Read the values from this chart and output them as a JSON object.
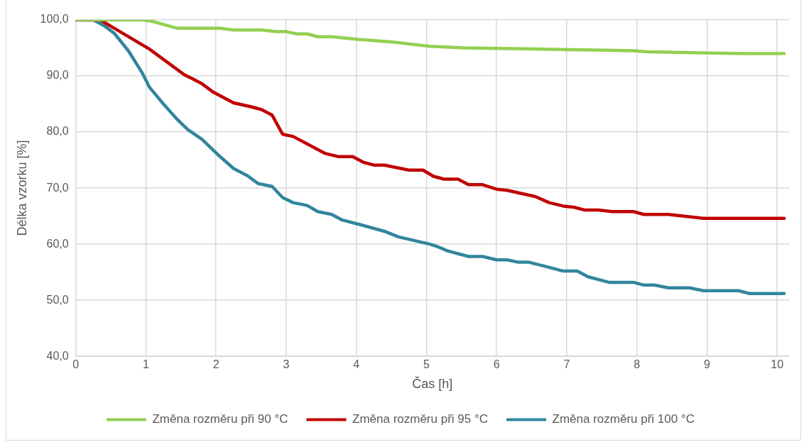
{
  "chart_data": {
    "type": "line",
    "xlabel": "Čas [h]",
    "ylabel": "Délka vzorku [%]",
    "xlim": [
      0,
      10.17
    ],
    "xticks": [
      0,
      1,
      2,
      3,
      4,
      5,
      6,
      7,
      8,
      9,
      10
    ],
    "ylim": [
      40,
      100
    ],
    "yticks": [
      {
        "value": 40,
        "label": "40,0"
      },
      {
        "value": 50,
        "label": "50,0"
      },
      {
        "value": 60,
        "label": "60,0"
      },
      {
        "value": 70,
        "label": "70,0"
      },
      {
        "value": 80,
        "label": "80,0"
      },
      {
        "value": 90,
        "label": "90,0"
      },
      {
        "value": 100,
        "label": "100,0"
      }
    ],
    "grid": true,
    "legend": "bottom",
    "marker": "none",
    "line_style": "solid",
    "series": [
      {
        "name": "Změna rozměru při 90 °C",
        "color": "#92d050",
        "x": [
          0,
          0.95,
          1.1,
          1.45,
          2.05,
          2.25,
          2.65,
          2.85,
          3.0,
          3.15,
          3.3,
          3.45,
          3.65,
          4.05,
          4.55,
          5.05,
          5.55,
          6.05,
          6.55,
          7.05,
          7.55,
          7.95,
          8.15,
          8.55,
          9.05,
          9.55,
          10.1
        ],
        "values": [
          100,
          100,
          99.7,
          98.5,
          98.5,
          98.2,
          98.2,
          97.9,
          97.9,
          97.5,
          97.5,
          97,
          97,
          96.5,
          96,
          95.3,
          95,
          94.9,
          94.8,
          94.7,
          94.6,
          94.5,
          94.3,
          94.2,
          94.1,
          94,
          94
        ]
      },
      {
        "name": "Změna rozměru při 95 °C",
        "color": "#c00000",
        "x": [
          0,
          0.35,
          0.55,
          1.05,
          1.55,
          1.65,
          1.8,
          1.95,
          2.25,
          2.5,
          2.65,
          2.8,
          2.95,
          3.1,
          3.55,
          3.75,
          3.95,
          4.1,
          4.25,
          4.4,
          4.75,
          4.95,
          5.1,
          5.25,
          5.45,
          5.6,
          5.8,
          6.0,
          6.15,
          6.55,
          6.75,
          6.95,
          7.1,
          7.25,
          7.45,
          7.65,
          7.95,
          8.1,
          8.45,
          8.95,
          10.1
        ],
        "values": [
          100,
          100,
          98.5,
          94.8,
          90.2,
          89.6,
          88.6,
          87.2,
          85.2,
          84.5,
          84,
          83,
          79.6,
          79.2,
          76.2,
          75.6,
          75.6,
          74.6,
          74.1,
          74.1,
          73.2,
          73.2,
          72.1,
          71.6,
          71.6,
          70.6,
          70.6,
          69.8,
          69.6,
          68.5,
          67.4,
          66.8,
          66.6,
          66.1,
          66.1,
          65.8,
          65.8,
          65.3,
          65.3,
          64.6,
          64.6
        ]
      },
      {
        "name": "Změna rozměru při 100 °C",
        "color": "#31859c",
        "x": [
          0,
          0.25,
          0.4,
          0.55,
          0.75,
          0.95,
          1.05,
          1.25,
          1.45,
          1.6,
          1.8,
          2.05,
          2.25,
          2.45,
          2.6,
          2.8,
          2.95,
          3.1,
          3.3,
          3.45,
          3.65,
          3.8,
          4.05,
          4.4,
          4.6,
          5.05,
          5.15,
          5.3,
          5.6,
          5.8,
          6.0,
          6.15,
          6.3,
          6.45,
          6.8,
          6.95,
          7.15,
          7.3,
          7.6,
          7.95,
          8.1,
          8.25,
          8.45,
          8.75,
          8.95,
          9.45,
          9.6,
          10.1
        ],
        "values": [
          100,
          100,
          99,
          97.6,
          94.5,
          90.5,
          88,
          85,
          82.2,
          80.4,
          78.7,
          75.7,
          73.5,
          72.2,
          70.8,
          70.3,
          68.3,
          67.4,
          66.9,
          65.8,
          65.3,
          64.3,
          63.5,
          62.3,
          61.3,
          60,
          59.6,
          58.8,
          57.8,
          57.8,
          57.2,
          57.2,
          56.8,
          56.8,
          55.7,
          55.2,
          55.2,
          54.2,
          53.2,
          53.2,
          52.7,
          52.7,
          52.2,
          52.2,
          51.7,
          51.7,
          51.2,
          51.2
        ]
      }
    ]
  }
}
